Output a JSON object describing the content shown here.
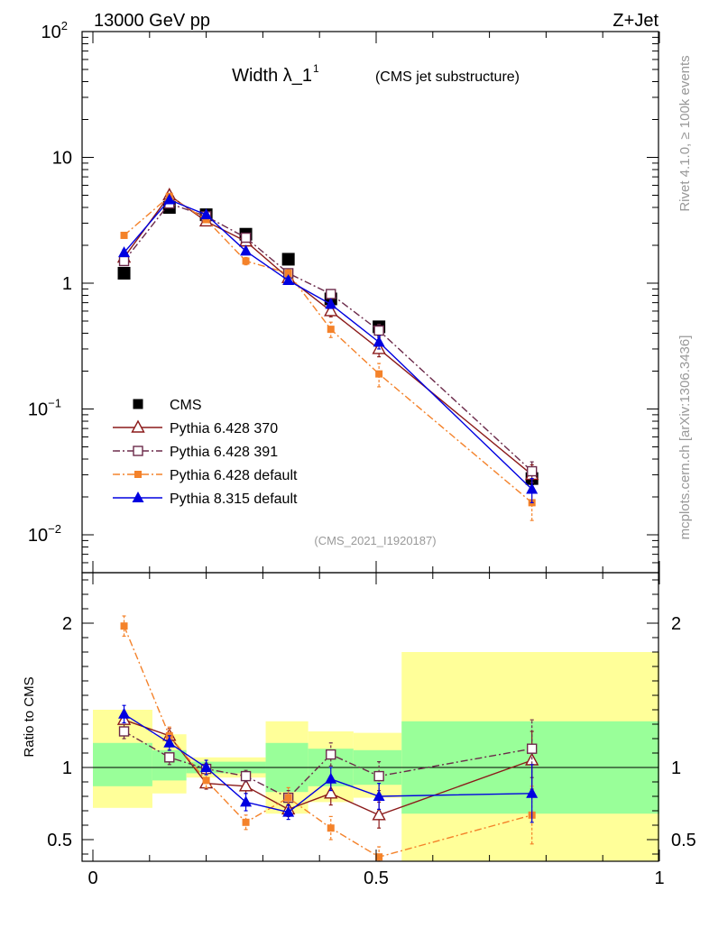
{
  "header": {
    "left": "13000 GeV pp",
    "right": "Z+Jet"
  },
  "side_labels": {
    "top": "Rivet 4.1.0, ≥ 100k events",
    "bottom": "mcplots.cern.ch [arXiv:1306.3436]"
  },
  "chart_data": [
    {
      "type": "scatter",
      "panel": "main",
      "title": "Width λ_1",
      "title_sup": "1",
      "subtitle": "(CMS jet substructure)",
      "watermark": "(CMS_2021_I1920187)",
      "yscale": "log",
      "ylim": [
        0.005,
        100
      ],
      "xlim": [
        0,
        1
      ],
      "yticks": [
        {
          "v": 0.01,
          "base": "10",
          "exp": "−2"
        },
        {
          "v": 0.1,
          "base": "10",
          "exp": "−1"
        },
        {
          "v": 1,
          "base": "1",
          "exp": ""
        },
        {
          "v": 10,
          "base": "10",
          "exp": ""
        },
        {
          "v": 100,
          "base": "10",
          "exp": "2"
        }
      ],
      "legend_position": "lower-left",
      "x": [
        0.055,
        0.135,
        0.2,
        0.27,
        0.345,
        0.42,
        0.505,
        0.775
      ],
      "series": [
        {
          "name": "CMS",
          "color": "#000000",
          "marker": "square",
          "line": "none",
          "values": [
            1.2,
            4.0,
            3.5,
            2.45,
            1.55,
            0.75,
            0.45,
            0.028
          ],
          "err": [
            0.05,
            0.15,
            0.1,
            0.08,
            0.06,
            0.03,
            0.02,
            0.003
          ]
        },
        {
          "name": "Pythia 6.428 370",
          "color": "#8b1a1a",
          "marker": "triangle-open",
          "line": "solid",
          "values": [
            1.6,
            5.0,
            3.1,
            2.15,
            1.1,
            0.6,
            0.3,
            0.03
          ],
          "err": [
            0.1,
            0.25,
            0.15,
            0.12,
            0.07,
            0.06,
            0.04,
            0.006
          ]
        },
        {
          "name": "Pythia 6.428 391",
          "color": "#6b2a4a",
          "marker": "square-open",
          "line": "dashdot",
          "values": [
            1.5,
            4.3,
            3.4,
            2.3,
            1.2,
            0.82,
            0.42,
            0.032
          ],
          "err": [
            0.08,
            0.2,
            0.15,
            0.12,
            0.07,
            0.06,
            0.05,
            0.006
          ]
        },
        {
          "name": "Pythia 6.428 default",
          "color": "#f4822a",
          "marker": "square-filled-small",
          "line": "dashdot",
          "values": [
            2.4,
            4.9,
            3.2,
            1.5,
            1.2,
            0.43,
            0.19,
            0.018
          ],
          "err": [
            0.12,
            0.25,
            0.15,
            0.1,
            0.08,
            0.06,
            0.04,
            0.005
          ]
        },
        {
          "name": "Pythia 8.315 default",
          "color": "#0000e0",
          "marker": "triangle-filled",
          "line": "solid",
          "values": [
            1.75,
            4.6,
            3.5,
            1.8,
            1.05,
            0.68,
            0.34,
            0.023
          ],
          "err": [
            0.1,
            0.22,
            0.15,
            0.1,
            0.07,
            0.05,
            0.04,
            0.005
          ]
        }
      ]
    },
    {
      "type": "scatter",
      "panel": "ratio",
      "ylabel": "Ratio to CMS",
      "ylim": [
        0.35,
        2.35
      ],
      "xlim": [
        0,
        1
      ],
      "yticks": [
        0.5,
        1,
        2
      ],
      "xticks": [
        {
          "v": 0,
          "label": "0"
        },
        {
          "v": 0.5,
          "label": "0.5"
        },
        {
          "v": 1,
          "label": "1"
        }
      ],
      "bands": [
        {
          "x0": 0.0,
          "x1": 0.105,
          "y1_lo": 0.87,
          "y1_hi": 1.17,
          "y2_lo": 0.72,
          "y2_hi": 1.4
        },
        {
          "x0": 0.105,
          "x1": 0.165,
          "y1_lo": 0.91,
          "y1_hi": 1.12,
          "y2_lo": 0.82,
          "y2_hi": 1.23
        },
        {
          "x0": 0.165,
          "x1": 0.305,
          "y1_lo": 0.96,
          "y1_hi": 1.04,
          "y2_lo": 0.93,
          "y2_hi": 1.07
        },
        {
          "x0": 0.305,
          "x1": 0.38,
          "y1_lo": 0.83,
          "y1_hi": 1.17,
          "y2_lo": 0.68,
          "y2_hi": 1.32
        },
        {
          "x0": 0.38,
          "x1": 0.46,
          "y1_lo": 0.87,
          "y1_hi": 1.13,
          "y2_lo": 0.76,
          "y2_hi": 1.25
        },
        {
          "x0": 0.46,
          "x1": 0.545,
          "y1_lo": 0.88,
          "y1_hi": 1.12,
          "y2_lo": 0.79,
          "y2_hi": 1.24
        },
        {
          "x0": 0.545,
          "x1": 1.0,
          "y1_lo": 0.68,
          "y1_hi": 1.32,
          "y2_lo": 0.35,
          "y2_hi": 1.8
        }
      ],
      "x": [
        0.055,
        0.135,
        0.2,
        0.27,
        0.345,
        0.42,
        0.505,
        0.775
      ],
      "series": [
        {
          "name": "Pythia 6.428 370",
          "color": "#8b1a1a",
          "marker": "triangle-open",
          "line": "solid",
          "values": [
            1.33,
            1.22,
            0.89,
            0.87,
            0.71,
            0.82,
            0.67,
            1.05
          ],
          "err": [
            0.05,
            0.05,
            0.04,
            0.05,
            0.05,
            0.08,
            0.09,
            0.2
          ]
        },
        {
          "name": "Pythia 6.428 391",
          "color": "#6b2a4a",
          "marker": "square-open",
          "line": "dashdot",
          "values": [
            1.25,
            1.07,
            0.99,
            0.94,
            0.79,
            1.09,
            0.94,
            1.13
          ],
          "err": [
            0.05,
            0.05,
            0.04,
            0.04,
            0.05,
            0.08,
            0.1,
            0.2
          ]
        },
        {
          "name": "Pythia 6.428 default",
          "color": "#f4822a",
          "marker": "square-filled-small",
          "line": "dashdot",
          "values": [
            1.98,
            1.22,
            0.91,
            0.62,
            0.79,
            0.58,
            0.38,
            0.67
          ],
          "err": [
            0.07,
            0.06,
            0.05,
            0.05,
            0.07,
            0.08,
            0.07,
            0.2
          ]
        },
        {
          "name": "Pythia 8.315 default",
          "color": "#0000e0",
          "marker": "triangle-filled",
          "line": "solid",
          "values": [
            1.37,
            1.17,
            1.0,
            0.76,
            0.69,
            0.92,
            0.8,
            0.82
          ],
          "err": [
            0.06,
            0.05,
            0.05,
            0.06,
            0.05,
            0.08,
            0.09,
            0.2
          ]
        }
      ]
    }
  ]
}
